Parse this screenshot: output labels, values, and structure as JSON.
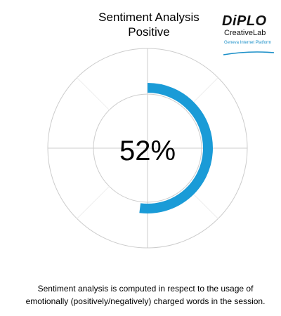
{
  "header": {
    "title_line1": "Sentiment Analysis",
    "title_line2": "Positive"
  },
  "logo": {
    "wordmark": "DiPLO",
    "subtitle": "CreativeLab",
    "tagline": "Geneva Internet Platform",
    "accent_color": "#1a8fc8"
  },
  "chart_data": {
    "type": "radial-gauge",
    "category": "Positive",
    "value": 52,
    "value_label": "52%",
    "max": 100,
    "start_angle_deg": 0,
    "direction": "clockwise",
    "grid": true,
    "color": "#1a9bd7",
    "grid_color": "#cccccc"
  },
  "footer": {
    "note": "Sentiment analysis is computed in respect to the usage of emotionally (positively/negatively) charged words in the session."
  }
}
